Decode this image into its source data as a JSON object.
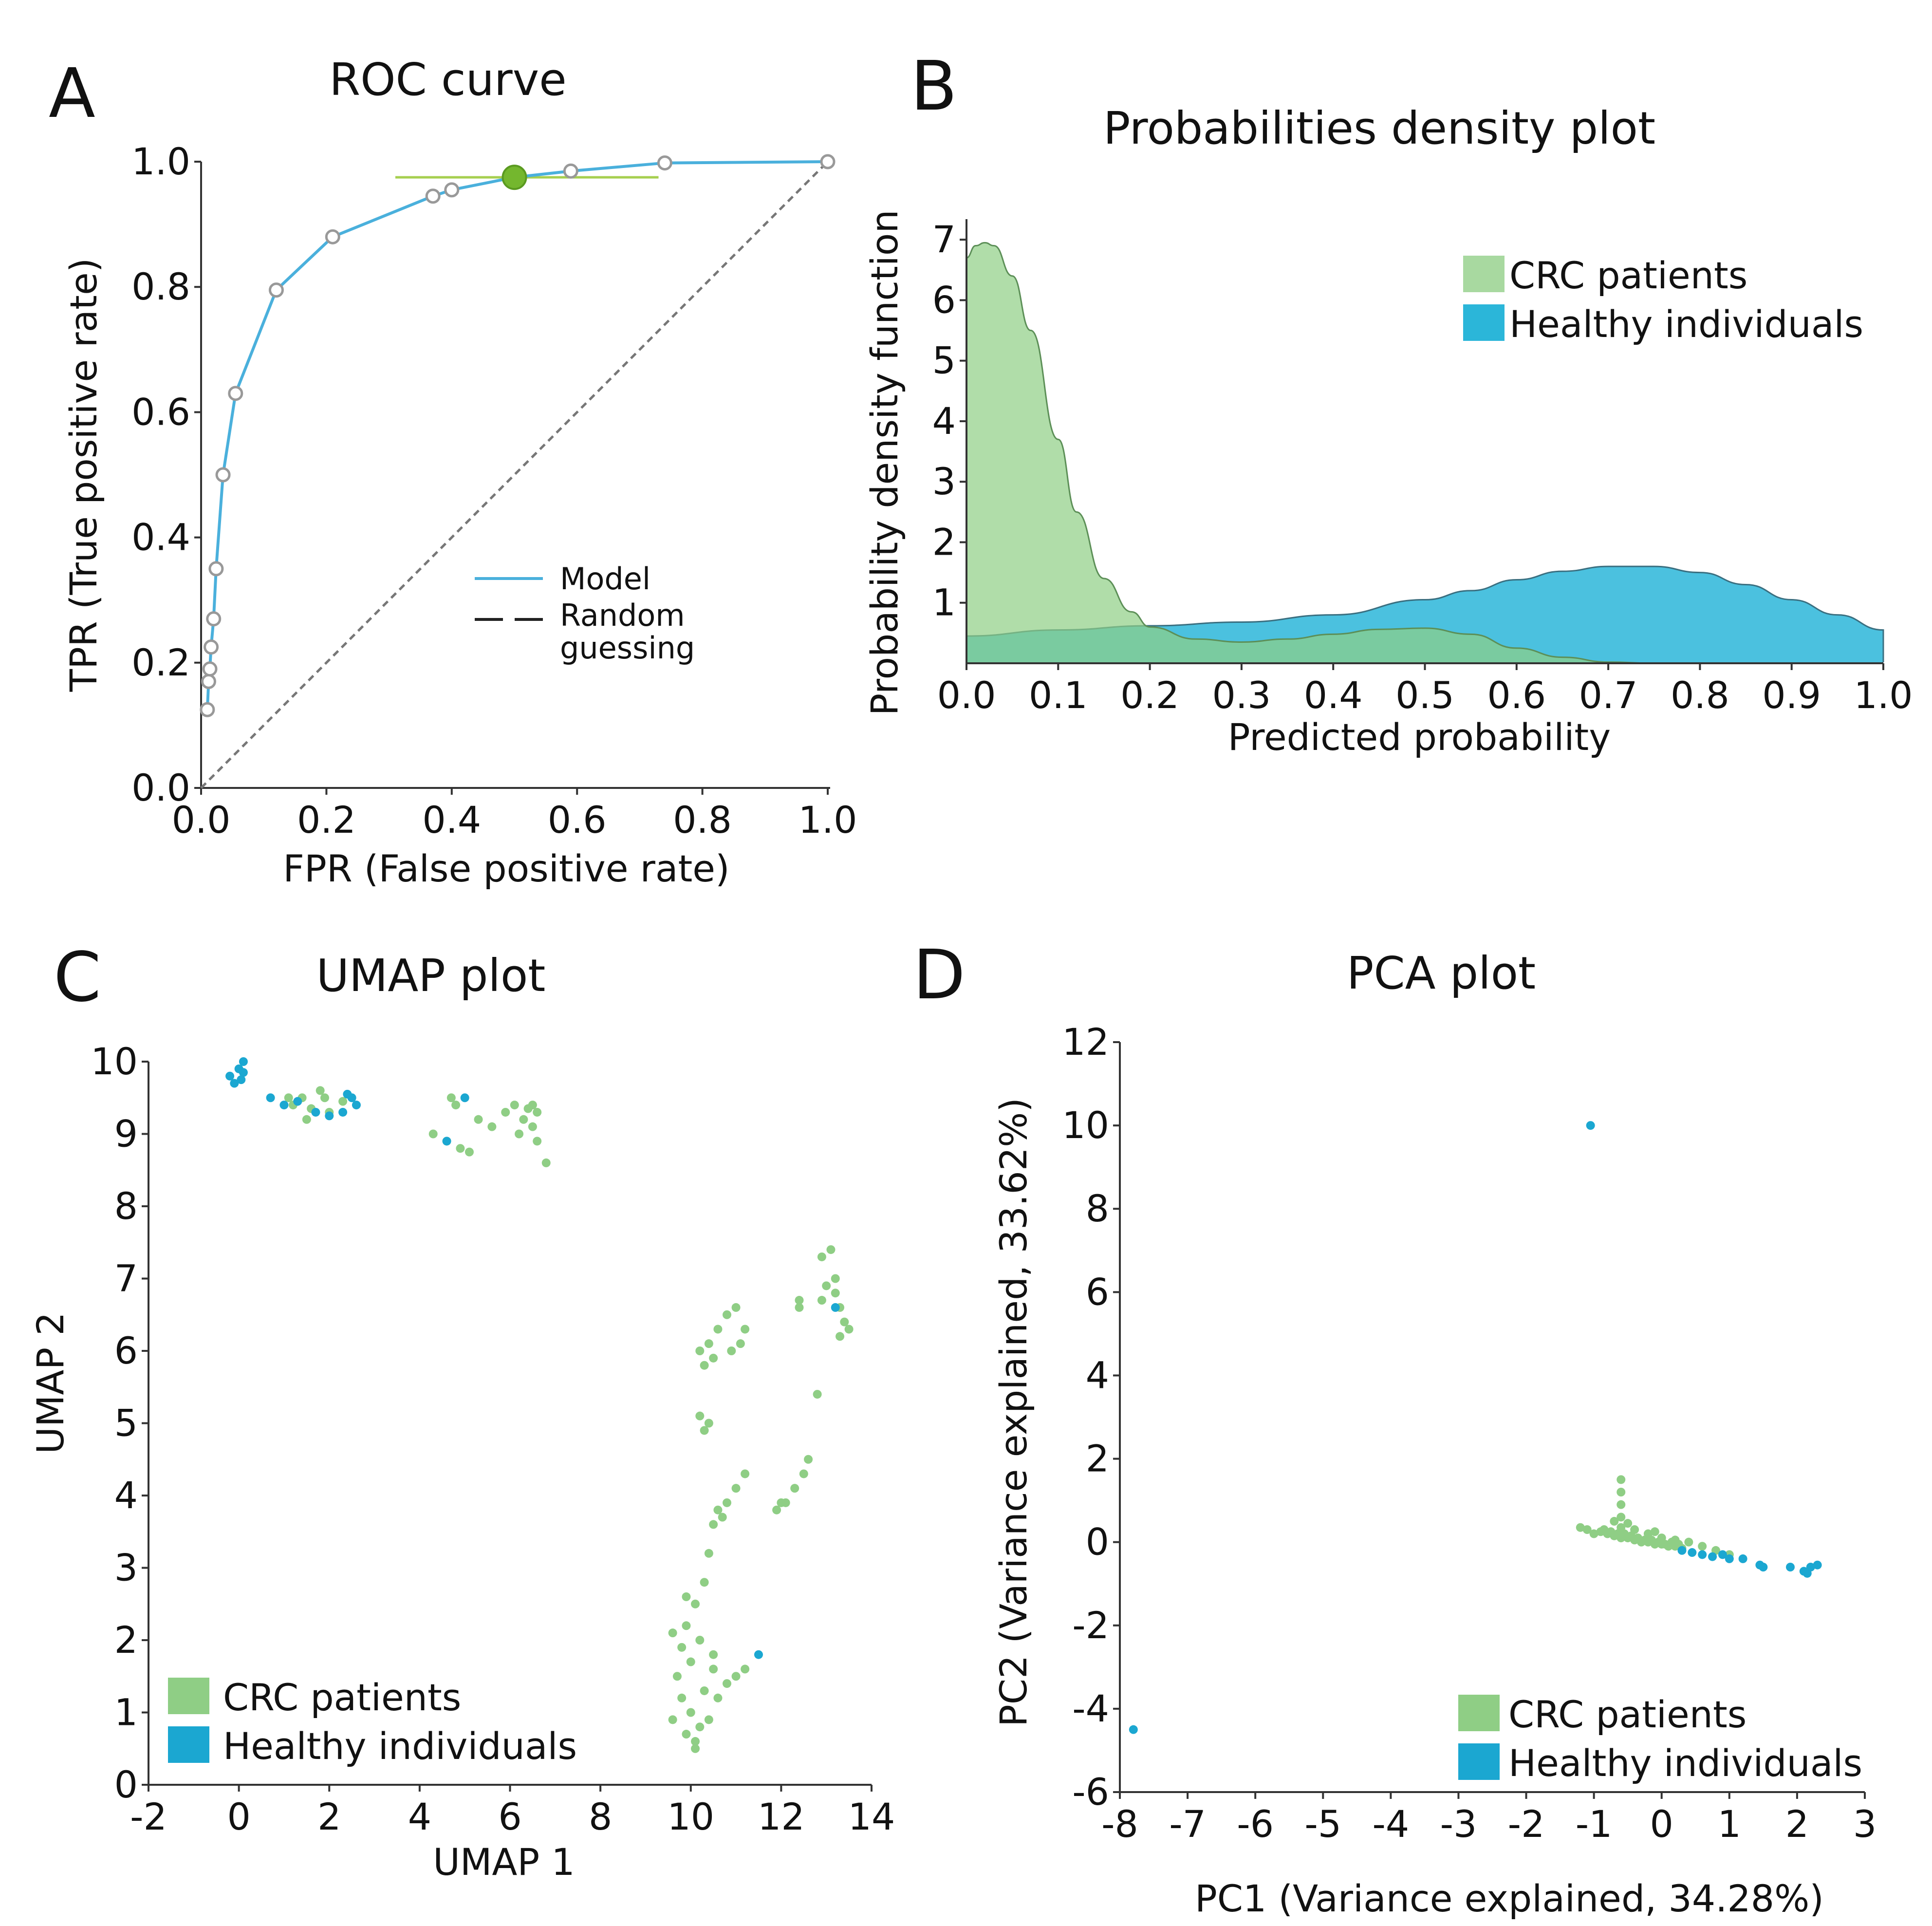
{
  "chart_data": [
    {
      "panel": "A",
      "type": "line",
      "title": "ROC  curve",
      "xlabel": "FPR (False positive rate)",
      "ylabel": "TPR (True positive rate)",
      "xlim": [
        0,
        1
      ],
      "ylim": [
        0,
        1
      ],
      "xticks": [
        "0.0",
        "0.2",
        "0.4",
        "0.6",
        "0.8",
        "1.0"
      ],
      "yticks": [
        "0.0",
        "0.2",
        "0.4",
        "0.6",
        "0.8",
        "1.0"
      ],
      "legend": [
        {
          "label": "Model",
          "style": "solid",
          "color": "#4ab0dc"
        },
        {
          "label": "Random",
          "label2": "guessing",
          "style": "dashed",
          "color": "#222222"
        }
      ],
      "series": [
        {
          "name": "Model",
          "x": [
            0.01,
            0.012,
            0.014,
            0.016,
            0.02,
            0.024,
            0.035,
            0.055,
            0.12,
            0.21,
            0.37,
            0.4,
            0.5,
            0.59,
            0.74,
            1.0
          ],
          "y": [
            0.125,
            0.17,
            0.19,
            0.225,
            0.27,
            0.35,
            0.5,
            0.63,
            0.795,
            0.88,
            0.945,
            0.955,
            0.975,
            0.985,
            0.998,
            1.0
          ]
        },
        {
          "name": "Random guessing",
          "x": [
            0,
            1
          ],
          "y": [
            0,
            1
          ]
        }
      ],
      "highlight": {
        "x": 0.5,
        "y": 0.975,
        "xerr": [
          0.31,
          0.73
        ]
      }
    },
    {
      "panel": "B",
      "type": "area",
      "title": "Probabilities density plot",
      "xlabel": "Predicted probability",
      "ylabel": "Probability density function",
      "xlim": [
        0,
        1
      ],
      "ylim": [
        0,
        7
      ],
      "xticks": [
        "0.0",
        "0.1",
        "0.2",
        "0.3",
        "0.4",
        "0.5",
        "0.6",
        "0.7",
        "0.8",
        "0.9",
        "1.0"
      ],
      "yticks": [
        "1",
        "2",
        "3",
        "4",
        "5",
        "6",
        "7"
      ],
      "legend": [
        {
          "label": "CRC patients",
          "color": "#a8d9a0"
        },
        {
          "label": "Healthy individuals",
          "color": "#2bb6d9"
        }
      ],
      "series": [
        {
          "name": "CRC patients",
          "x": [
            0,
            0.01,
            0.02,
            0.03,
            0.05,
            0.07,
            0.1,
            0.12,
            0.15,
            0.18,
            0.2,
            0.25,
            0.3,
            0.35,
            0.4,
            0.45,
            0.5,
            0.55,
            0.6,
            0.65,
            0.7,
            0.75,
            0.8,
            0.9,
            1.0
          ],
          "y": [
            6.7,
            6.9,
            6.95,
            6.9,
            6.4,
            5.5,
            3.7,
            2.5,
            1.4,
            0.85,
            0.6,
            0.4,
            0.35,
            0.4,
            0.48,
            0.56,
            0.58,
            0.48,
            0.25,
            0.1,
            0.02,
            0.0,
            0.0,
            0.0,
            0.0
          ]
        },
        {
          "name": "Healthy individuals",
          "x": [
            0,
            0.1,
            0.2,
            0.3,
            0.4,
            0.5,
            0.55,
            0.6,
            0.65,
            0.7,
            0.75,
            0.8,
            0.85,
            0.9,
            0.95,
            1.0
          ],
          "y": [
            0.45,
            0.55,
            0.62,
            0.68,
            0.8,
            1.05,
            1.2,
            1.38,
            1.52,
            1.6,
            1.6,
            1.5,
            1.3,
            1.05,
            0.8,
            0.55
          ]
        }
      ]
    },
    {
      "panel": "C",
      "type": "scatter",
      "title": "UMAP plot",
      "xlabel": "UMAP 1",
      "ylabel": "UMAP 2",
      "xlim": [
        -2,
        14
      ],
      "ylim": [
        0,
        10
      ],
      "xticks": [
        "-2",
        "0",
        "2",
        "4",
        "6",
        "8",
        "10",
        "12",
        "14"
      ],
      "yticks": [
        "0",
        "1",
        "2",
        "3",
        "4",
        "5",
        "6",
        "7",
        "8",
        "9",
        "10"
      ],
      "legend": [
        {
          "label": "CRC patients",
          "color": "#8fce85"
        },
        {
          "label": "Healthy individuals",
          "color": "#1ba7d1"
        }
      ],
      "series": [
        {
          "name": "CRC patients",
          "points": [
            [
              1.2,
              9.4
            ],
            [
              1.4,
              9.5
            ],
            [
              1.6,
              9.35
            ],
            [
              1.8,
              9.6
            ],
            [
              2.0,
              9.3
            ],
            [
              1.5,
              9.2
            ],
            [
              1.9,
              9.5
            ],
            [
              2.3,
              9.45
            ],
            [
              1.1,
              9.5
            ],
            [
              4.3,
              9.0
            ],
            [
              4.6,
              8.9
            ],
            [
              4.9,
              8.8
            ],
            [
              5.1,
              8.75
            ],
            [
              4.8,
              9.4
            ],
            [
              5.3,
              9.2
            ],
            [
              5.6,
              9.1
            ],
            [
              4.7,
              9.5
            ],
            [
              5.9,
              9.3
            ],
            [
              6.1,
              9.4
            ],
            [
              6.3,
              9.2
            ],
            [
              6.5,
              9.4
            ],
            [
              6.6,
              9.3
            ],
            [
              6.2,
              9.0
            ],
            [
              6.5,
              9.1
            ],
            [
              6.8,
              8.6
            ],
            [
              6.6,
              8.9
            ],
            [
              6.4,
              9.35
            ],
            [
              10.2,
              6.0
            ],
            [
              10.4,
              6.1
            ],
            [
              10.6,
              6.3
            ],
            [
              10.8,
              6.5
            ],
            [
              11.0,
              6.6
            ],
            [
              11.2,
              6.3
            ],
            [
              10.3,
              5.8
            ],
            [
              10.5,
              5.9
            ],
            [
              10.9,
              6.0
            ],
            [
              11.1,
              6.1
            ],
            [
              10.2,
              5.1
            ],
            [
              10.3,
              4.9
            ],
            [
              10.4,
              5.0
            ],
            [
              10.5,
              3.6
            ],
            [
              10.6,
              3.8
            ],
            [
              10.8,
              3.9
            ],
            [
              11.0,
              4.1
            ],
            [
              11.2,
              4.3
            ],
            [
              10.7,
              3.7
            ],
            [
              10.4,
              3.2
            ],
            [
              10.3,
              2.8
            ],
            [
              10.1,
              2.5
            ],
            [
              9.9,
              2.2
            ],
            [
              9.8,
              1.9
            ],
            [
              9.7,
              1.5
            ],
            [
              9.8,
              1.2
            ],
            [
              10.0,
              1.0
            ],
            [
              10.2,
              0.8
            ],
            [
              10.4,
              0.9
            ],
            [
              9.9,
              0.7
            ],
            [
              10.1,
              0.6
            ],
            [
              9.6,
              0.9
            ],
            [
              10.3,
              1.3
            ],
            [
              10.6,
              1.2
            ],
            [
              10.8,
              1.4
            ],
            [
              11.0,
              1.5
            ],
            [
              11.2,
              1.6
            ],
            [
              10.5,
              1.6
            ],
            [
              10.2,
              2.0
            ],
            [
              10.0,
              1.7
            ],
            [
              9.6,
              2.1
            ],
            [
              9.9,
              2.6
            ],
            [
              10.5,
              1.8
            ],
            [
              10.1,
              0.5
            ],
            [
              11.9,
              3.8
            ],
            [
              12.1,
              3.9
            ],
            [
              12.3,
              4.1
            ],
            [
              12.5,
              4.3
            ],
            [
              12.6,
              4.5
            ],
            [
              12.0,
              3.9
            ],
            [
              12.4,
              6.6
            ],
            [
              12.4,
              6.7
            ],
            [
              12.8,
              5.4
            ],
            [
              12.9,
              7.3
            ],
            [
              13.1,
              7.4
            ],
            [
              13.0,
              6.9
            ],
            [
              13.2,
              7.0
            ],
            [
              12.9,
              6.7
            ],
            [
              13.3,
              6.6
            ],
            [
              13.4,
              6.4
            ],
            [
              13.5,
              6.3
            ],
            [
              13.3,
              6.2
            ],
            [
              13.2,
              6.8
            ]
          ]
        },
        {
          "name": "Healthy individuals",
          "points": [
            [
              -0.2,
              9.8
            ],
            [
              0.0,
              9.9
            ],
            [
              0.1,
              9.85
            ],
            [
              -0.1,
              9.7
            ],
            [
              0.05,
              9.75
            ],
            [
              0.1,
              10.0
            ],
            [
              0.7,
              9.5
            ],
            [
              1.0,
              9.4
            ],
            [
              1.3,
              9.45
            ],
            [
              1.7,
              9.3
            ],
            [
              2.0,
              9.25
            ],
            [
              2.3,
              9.3
            ],
            [
              2.5,
              9.5
            ],
            [
              2.6,
              9.4
            ],
            [
              2.4,
              9.55
            ],
            [
              4.6,
              8.9
            ],
            [
              5.0,
              9.5
            ],
            [
              11.5,
              1.8
            ],
            [
              13.2,
              6.6
            ]
          ]
        }
      ]
    },
    {
      "panel": "D",
      "type": "scatter",
      "title": "PCA plot",
      "xlabel": "PC1 (Variance explained, 34.28%)",
      "ylabel": "PC2 (Variance explained, 33.62%)",
      "xlim": [
        -8,
        3
      ],
      "ylim": [
        -6,
        12
      ],
      "xticks": [
        "-8",
        "-7",
        "-6",
        "-5",
        "-4",
        "-3",
        "-2",
        "-1",
        "0",
        "1",
        "2",
        "3"
      ],
      "yticks": [
        "-6",
        "-4",
        "-2",
        "0",
        "2",
        "4",
        "6",
        "8",
        "10",
        "12"
      ],
      "legend": [
        {
          "label": "CRC patients",
          "color": "#8fce85"
        },
        {
          "label": "Healthy individuals",
          "color": "#1ba7d1"
        }
      ],
      "series": [
        {
          "name": "CRC patients",
          "points": [
            [
              -1.1,
              0.3
            ],
            [
              -1.0,
              0.2
            ],
            [
              -0.9,
              0.25
            ],
            [
              -0.8,
              0.2
            ],
            [
              -0.7,
              0.15
            ],
            [
              -0.6,
              0.1
            ],
            [
              -0.5,
              0.1
            ],
            [
              -0.4,
              0.05
            ],
            [
              -0.3,
              0.0
            ],
            [
              -0.2,
              0.0
            ],
            [
              -0.1,
              -0.05
            ],
            [
              0.0,
              -0.05
            ],
            [
              0.1,
              -0.1
            ],
            [
              0.2,
              -0.1
            ],
            [
              0.3,
              -0.15
            ],
            [
              -0.85,
              0.3
            ],
            [
              -0.75,
              0.25
            ],
            [
              -0.65,
              0.2
            ],
            [
              -0.55,
              0.2
            ],
            [
              -0.45,
              0.15
            ],
            [
              -0.35,
              0.1
            ],
            [
              -0.25,
              0.05
            ],
            [
              -0.15,
              0.05
            ],
            [
              -0.05,
              0.0
            ],
            [
              0.05,
              -0.05
            ],
            [
              0.15,
              0.0
            ],
            [
              0.25,
              -0.05
            ],
            [
              -0.6,
              0.35
            ],
            [
              -0.4,
              0.3
            ],
            [
              -0.2,
              0.2
            ],
            [
              0.0,
              0.1
            ],
            [
              0.2,
              0.05
            ],
            [
              -0.6,
              1.5
            ],
            [
              -0.6,
              1.2
            ],
            [
              -0.6,
              0.9
            ],
            [
              -0.6,
              0.6
            ],
            [
              -0.7,
              0.5
            ],
            [
              -0.5,
              0.45
            ],
            [
              0.4,
              0.0
            ],
            [
              0.6,
              -0.1
            ],
            [
              0.8,
              -0.2
            ],
            [
              1.0,
              -0.3
            ],
            [
              -1.2,
              0.35
            ],
            [
              -0.1,
              0.25
            ]
          ]
        },
        {
          "name": "Healthy individuals",
          "points": [
            [
              -1.05,
              10.0
            ],
            [
              -7.8,
              -4.5
            ],
            [
              0.3,
              -0.2
            ],
            [
              0.45,
              -0.25
            ],
            [
              0.6,
              -0.3
            ],
            [
              0.75,
              -0.35
            ],
            [
              0.9,
              -0.3
            ],
            [
              1.0,
              -0.4
            ],
            [
              1.2,
              -0.4
            ],
            [
              1.45,
              -0.55
            ],
            [
              1.5,
              -0.6
            ],
            [
              1.9,
              -0.6
            ],
            [
              2.1,
              -0.7
            ],
            [
              2.2,
              -0.6
            ],
            [
              2.3,
              -0.55
            ],
            [
              2.15,
              -0.75
            ]
          ]
        }
      ]
    }
  ]
}
